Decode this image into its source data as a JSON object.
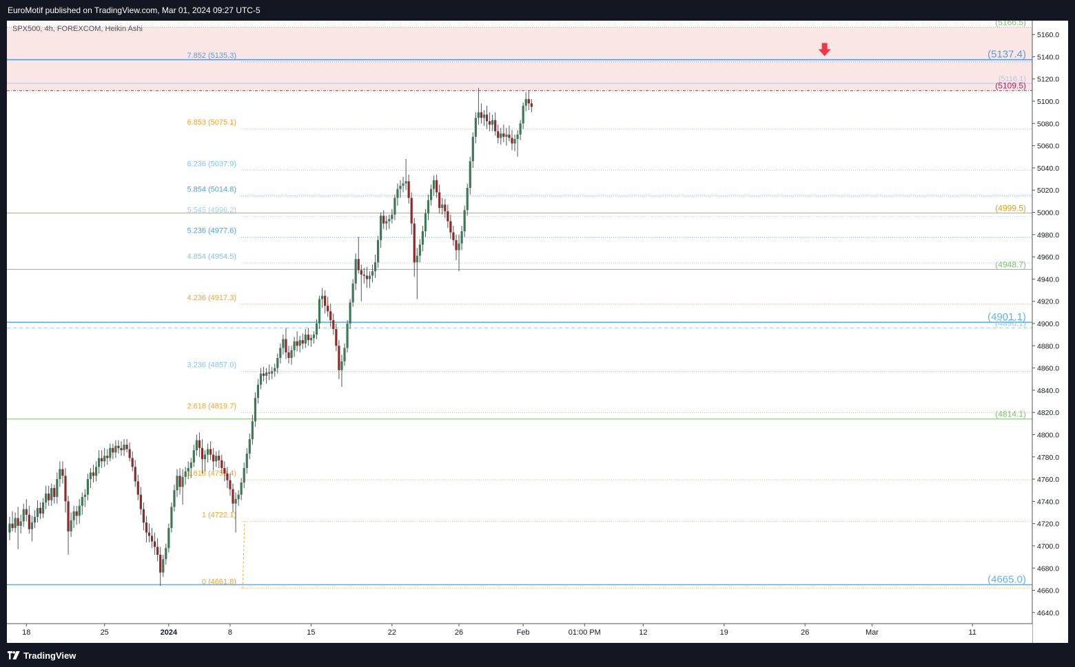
{
  "header": {
    "published": "EuroMotif published on TradingView.com, Mar 01, 2024 09:27 UTC-5"
  },
  "footer": {
    "brand": "TradingView"
  },
  "chart_data": {
    "type": "candlestick",
    "symbol_line": "SPX500, 4h, FOREXCOM, Heikin Ashi",
    "ylim": [
      4630,
      5170
    ],
    "y_ticks": [
      "5160.0",
      "5140.0",
      "5120.0",
      "5100.0",
      "5080.0",
      "5060.0",
      "5040.0",
      "5020.0",
      "5000.0",
      "4980.0",
      "4960.0",
      "4940.0",
      "4920.0",
      "4900.0",
      "4880.0",
      "4860.0",
      "4840.0",
      "4820.0",
      "4800.0",
      "4780.0",
      "4760.0",
      "4740.0",
      "4720.0",
      "4700.0",
      "4680.0",
      "4660.0",
      "4640.0"
    ],
    "x_ticks": [
      {
        "label": "18",
        "i": 6
      },
      {
        "label": "25",
        "i": 34
      },
      {
        "label": "2024",
        "i": 57
      },
      {
        "label": "8",
        "i": 79
      },
      {
        "label": "15",
        "i": 108
      },
      {
        "label": "22",
        "i": 137
      },
      {
        "label": "26",
        "i": 161
      },
      {
        "label": "Feb",
        "i": 184
      },
      {
        "label": "01:00 PM",
        "i": 206
      },
      {
        "label": "12",
        "i": 227
      },
      {
        "label": "19",
        "i": 256
      },
      {
        "label": "26",
        "i": 285
      },
      {
        "label": "Mar",
        "i": 309
      },
      {
        "label": "11",
        "i": 345
      }
    ],
    "fib_levels": [
      {
        "ratio": "0",
        "value": 4661.8,
        "label": "0 (4661.8)",
        "color": "#f2a228"
      },
      {
        "ratio": "1",
        "value": 4722.1,
        "label": "1 (4722.1)",
        "color": "#f2a228"
      },
      {
        "ratio": "1.618",
        "value": 4759.4,
        "label": "1.618 (4759.4)",
        "color": "#f2a228"
      },
      {
        "ratio": "2.618",
        "value": 4819.7,
        "label": "2.618 (4819.7)",
        "color": "#f2a228"
      },
      {
        "ratio": "3.236",
        "value": 4857.0,
        "label": "3.236 (4857.0)",
        "color": "#7ec3ea"
      },
      {
        "ratio": "4.236",
        "value": 4917.3,
        "label": "4.236 (4917.3)",
        "color": "#f2a228"
      },
      {
        "ratio": "4.854",
        "value": 4954.5,
        "label": "4.854 (4954.5)",
        "color": "#7ec3ea"
      },
      {
        "ratio": "5.236",
        "value": 4977.6,
        "label": "5.236 (4977.6)",
        "color": "#4aa3df"
      },
      {
        "ratio": "5.545",
        "value": 4996.2,
        "label": "5.545 (4996.2)",
        "color": "#9fd0ee"
      },
      {
        "ratio": "5.854",
        "value": 5014.8,
        "label": "5.854 (5014.8)",
        "color": "#4aa3df"
      },
      {
        "ratio": "6.236",
        "value": 5037.9,
        "label": "6.236 (5037.9)",
        "color": "#7ec3ea"
      },
      {
        "ratio": "6.853",
        "value": 5075.1,
        "label": "6.853 (5075.1)",
        "color": "#f2a228"
      },
      {
        "ratio": "7.852",
        "value": 5135.3,
        "label": "7.852 (5135.3)",
        "color": "#4aa3df"
      }
    ],
    "horizontal_lines": [
      {
        "value": 5166.5,
        "label": "(5166.5)",
        "color": "#7cbf6c",
        "style": "dotted",
        "label_size": "normal"
      },
      {
        "value": 5137.4,
        "label": "(5137.4)",
        "color": "#5b9bd5",
        "style": "solid",
        "label_size": "large"
      },
      {
        "value": 5116.1,
        "label": "(5116.1)",
        "color": "#a8cbe8",
        "style": "solid",
        "label_size": "small"
      },
      {
        "value": 5109.5,
        "label": "(5109.5)",
        "color": "#c2185b",
        "style": "dashdot",
        "label_size": "normal"
      },
      {
        "value": 4999.5,
        "label": "(4999.5)",
        "color": "#d6a418",
        "style": "solid",
        "label_size": "normal"
      },
      {
        "value": 4948.7,
        "label": "(4948.7)",
        "color": "#7cbf6c",
        "style": "solid",
        "label_size": "normal"
      },
      {
        "value": 4901.1,
        "label": "(4901.1)",
        "color": "#5eb2ef",
        "style": "solid",
        "label_size": "large"
      },
      {
        "value": 4896.1,
        "label": "(4896.1)",
        "color": "#92c8ee",
        "style": "dashed",
        "label_size": "normal"
      },
      {
        "value": 4814.1,
        "label": "(4814.1)",
        "color": "#7cbf6c",
        "style": "solid",
        "label_size": "normal"
      },
      {
        "value": 4665.0,
        "label": "(4665.0)",
        "color": "#5eb2ef",
        "style": "solid",
        "label_size": "large"
      }
    ],
    "zone": {
      "from": 5109.5,
      "to": 5166.5,
      "color": "#fbe6e6"
    },
    "arrow_marker": {
      "i": 292,
      "value": 5140,
      "color": "#f23645",
      "direction": "down"
    },
    "colors": {
      "up": "#3b7a55",
      "down": "#8b2a28",
      "wick": "#50535e",
      "axis_text": "#131722"
    },
    "candles": [
      [
        4712,
        4726,
        4705,
        4720
      ],
      [
        4720,
        4731,
        4713,
        4716
      ],
      [
        4716,
        4730,
        4712,
        4725
      ],
      [
        4725,
        4735,
        4697,
        4718
      ],
      [
        4718,
        4728,
        4711,
        4722
      ],
      [
        4722,
        4738,
        4717,
        4733
      ],
      [
        4733,
        4742,
        4722,
        4728
      ],
      [
        4728,
        4736,
        4711,
        4715
      ],
      [
        4715,
        4727,
        4704,
        4721
      ],
      [
        4721,
        4732,
        4716,
        4726
      ],
      [
        4726,
        4741,
        4721,
        4734
      ],
      [
        4734,
        4739,
        4724,
        4729
      ],
      [
        4729,
        4743,
        4725,
        4739
      ],
      [
        4739,
        4754,
        4733,
        4747
      ],
      [
        4747,
        4754,
        4736,
        4741
      ],
      [
        4741,
        4756,
        4736,
        4752
      ],
      [
        4752,
        4755,
        4738,
        4744
      ],
      [
        4744,
        4766,
        4738,
        4760
      ],
      [
        4760,
        4776,
        4753,
        4769
      ],
      [
        4769,
        4776,
        4756,
        4763
      ],
      [
        4763,
        4770,
        4730,
        4740
      ],
      [
        4740,
        4745,
        4692,
        4713
      ],
      [
        4713,
        4730,
        4708,
        4723
      ],
      [
        4723,
        4736,
        4716,
        4731
      ],
      [
        4731,
        4736,
        4719,
        4727
      ],
      [
        4727,
        4742,
        4720,
        4736
      ],
      [
        4736,
        4748,
        4728,
        4744
      ],
      [
        4744,
        4751,
        4735,
        4746
      ],
      [
        4746,
        4765,
        4741,
        4760
      ],
      [
        4760,
        4770,
        4752,
        4766
      ],
      [
        4766,
        4773,
        4757,
        4763
      ],
      [
        4763,
        4776,
        4758,
        4771
      ],
      [
        4771,
        4786,
        4765,
        4779
      ],
      [
        4779,
        4786,
        4770,
        4776
      ],
      [
        4776,
        4788,
        4771,
        4781
      ],
      [
        4781,
        4787,
        4773,
        4779
      ],
      [
        4779,
        4792,
        4776,
        4788
      ],
      [
        4788,
        4792,
        4778,
        4784
      ],
      [
        4784,
        4795,
        4779,
        4790
      ],
      [
        4790,
        4795,
        4783,
        4788
      ],
      [
        4788,
        4794,
        4781,
        4786
      ],
      [
        4786,
        4796,
        4781,
        4791
      ],
      [
        4791,
        4796,
        4784,
        4787
      ],
      [
        4787,
        4793,
        4776,
        4779
      ],
      [
        4779,
        4785,
        4767,
        4771
      ],
      [
        4771,
        4777,
        4753,
        4758
      ],
      [
        4758,
        4764,
        4741,
        4746
      ],
      [
        4746,
        4753,
        4728,
        4733
      ],
      [
        4733,
        4739,
        4714,
        4721
      ],
      [
        4721,
        4727,
        4703,
        4712
      ],
      [
        4712,
        4720,
        4703,
        4709
      ],
      [
        4709,
        4716,
        4698,
        4704
      ],
      [
        4704,
        4712,
        4692,
        4699
      ],
      [
        4699,
        4707,
        4686,
        4692
      ],
      [
        4692,
        4699,
        4664,
        4676
      ],
      [
        4676,
        4692,
        4672,
        4688
      ],
      [
        4688,
        4702,
        4683,
        4698
      ],
      [
        4698,
        4720,
        4694,
        4716
      ],
      [
        4716,
        4739,
        4712,
        4735
      ],
      [
        4735,
        4755,
        4731,
        4750
      ],
      [
        4750,
        4769,
        4744,
        4763
      ],
      [
        4763,
        4770,
        4746,
        4753
      ],
      [
        4753,
        4769,
        4737,
        4762
      ],
      [
        4762,
        4771,
        4755,
        4767
      ],
      [
        4767,
        4776,
        4760,
        4770
      ],
      [
        4770,
        4779,
        4761,
        4775
      ],
      [
        4775,
        4791,
        4771,
        4786
      ],
      [
        4786,
        4800,
        4781,
        4795
      ],
      [
        4795,
        4802,
        4780,
        4788
      ],
      [
        4788,
        4796,
        4765,
        4778
      ],
      [
        4778,
        4786,
        4767,
        4782
      ],
      [
        4782,
        4792,
        4775,
        4787
      ],
      [
        4787,
        4794,
        4777,
        4782
      ],
      [
        4782,
        4788,
        4768,
        4776
      ],
      [
        4776,
        4785,
        4771,
        4781
      ],
      [
        4781,
        4786,
        4770,
        4777
      ],
      [
        4777,
        4782,
        4765,
        4770
      ],
      [
        4770,
        4776,
        4758,
        4765
      ],
      [
        4765,
        4771,
        4752,
        4759
      ],
      [
        4759,
        4765,
        4745,
        4751
      ],
      [
        4751,
        4756,
        4730,
        4738
      ],
      [
        4738,
        4748,
        4712,
        4742
      ],
      [
        4742,
        4750,
        4736,
        4746
      ],
      [
        4746,
        4761,
        4741,
        4757
      ],
      [
        4757,
        4775,
        4752,
        4770
      ],
      [
        4770,
        4788,
        4765,
        4783
      ],
      [
        4783,
        4801,
        4778,
        4796
      ],
      [
        4796,
        4818,
        4791,
        4812
      ],
      [
        4812,
        4838,
        4807,
        4833
      ],
      [
        4833,
        4850,
        4828,
        4845
      ],
      [
        4845,
        4860,
        4841,
        4855
      ],
      [
        4855,
        4861,
        4848,
        4853
      ],
      [
        4853,
        4860,
        4846,
        4856
      ],
      [
        4856,
        4863,
        4849,
        4855
      ],
      [
        4855,
        4861,
        4850,
        4857
      ],
      [
        4857,
        4864,
        4852,
        4860
      ],
      [
        4860,
        4873,
        4855,
        4869
      ],
      [
        4869,
        4882,
        4864,
        4878
      ],
      [
        4878,
        4890,
        4872,
        4886
      ],
      [
        4886,
        4896,
        4868,
        4874
      ],
      [
        4874,
        4880,
        4864,
        4869
      ],
      [
        4869,
        4880,
        4863,
        4876
      ],
      [
        4876,
        4888,
        4870,
        4884
      ],
      [
        4884,
        4893,
        4875,
        4880
      ],
      [
        4880,
        4889,
        4874,
        4885
      ],
      [
        4885,
        4891,
        4877,
        4882
      ],
      [
        4882,
        4895,
        4878,
        4890
      ],
      [
        4890,
        4896,
        4880,
        4885
      ],
      [
        4885,
        4890,
        4879,
        4887
      ],
      [
        4887,
        4893,
        4882,
        4890
      ],
      [
        4890,
        4904,
        4886,
        4900
      ],
      [
        4900,
        4925,
        4895,
        4922
      ],
      [
        4922,
        4932,
        4914,
        4925
      ],
      [
        4925,
        4930,
        4909,
        4916
      ],
      [
        4916,
        4924,
        4906,
        4911
      ],
      [
        4911,
        4918,
        4897,
        4903
      ],
      [
        4903,
        4909,
        4890,
        4895
      ],
      [
        4895,
        4900,
        4875,
        4880
      ],
      [
        4880,
        4885,
        4850,
        4858
      ],
      [
        4858,
        4872,
        4843,
        4866
      ],
      [
        4866,
        4882,
        4862,
        4878
      ],
      [
        4878,
        4903,
        4874,
        4900
      ],
      [
        4900,
        4922,
        4895,
        4919
      ],
      [
        4919,
        4940,
        4915,
        4936
      ],
      [
        4936,
        4963,
        4930,
        4958
      ],
      [
        4958,
        4978,
        4945,
        4948
      ],
      [
        4948,
        4953,
        4920,
        4944
      ],
      [
        4944,
        4950,
        4936,
        4943
      ],
      [
        4943,
        4951,
        4932,
        4940
      ],
      [
        4940,
        4947,
        4932,
        4943
      ],
      [
        4943,
        4953,
        4937,
        4947
      ],
      [
        4947,
        4962,
        4941,
        4955
      ],
      [
        4955,
        4979,
        4950,
        4975
      ],
      [
        4975,
        5000,
        4968,
        4997
      ],
      [
        4997,
        5002,
        4985,
        4990
      ],
      [
        4990,
        4997,
        4984,
        4992
      ],
      [
        4992,
        4998,
        4985,
        4994
      ],
      [
        4994,
        5003,
        4990,
        4998
      ],
      [
        4998,
        5016,
        4993,
        5013
      ],
      [
        5013,
        5026,
        5006,
        5021
      ],
      [
        5021,
        5029,
        5013,
        5024
      ],
      [
        5024,
        5032,
        5018,
        5026
      ],
      [
        5026,
        5048,
        5020,
        5028
      ],
      [
        5028,
        5034,
        5008,
        5013
      ],
      [
        5013,
        5018,
        4980,
        4990
      ],
      [
        4990,
        4995,
        4942,
        4955
      ],
      [
        4955,
        4968,
        4922,
        4961
      ],
      [
        4961,
        4976,
        4955,
        4971
      ],
      [
        4971,
        4988,
        4965,
        4983
      ],
      [
        4983,
        5003,
        4978,
        4999
      ],
      [
        4999,
        5016,
        4993,
        5011
      ],
      [
        5011,
        5025,
        5006,
        5021
      ],
      [
        5021,
        5033,
        5015,
        5029
      ],
      [
        5029,
        5034,
        5013,
        5018
      ],
      [
        5018,
        5025,
        4999,
        5004
      ],
      [
        5004,
        5013,
        4998,
        5007
      ],
      [
        5007,
        5012,
        4995,
        5001
      ],
      [
        5001,
        5007,
        4986,
        4992
      ],
      [
        4992,
        4998,
        4976,
        4982
      ],
      [
        4982,
        4988,
        4970,
        4975
      ],
      [
        4975,
        4980,
        4957,
        4966
      ],
      [
        4966,
        4980,
        4947,
        4972
      ],
      [
        4972,
        4988,
        4966,
        4983
      ],
      [
        4983,
        5006,
        4978,
        5002
      ],
      [
        5002,
        5026,
        4997,
        5022
      ],
      [
        5022,
        5050,
        5016,
        5046
      ],
      [
        5046,
        5072,
        5040,
        5068
      ],
      [
        5068,
        5090,
        5062,
        5085
      ],
      [
        5085,
        5112,
        5079,
        5090
      ],
      [
        5090,
        5098,
        5080,
        5085
      ],
      [
        5085,
        5092,
        5078,
        5088
      ],
      [
        5088,
        5096,
        5075,
        5082
      ],
      [
        5082,
        5090,
        5073,
        5079
      ],
      [
        5079,
        5088,
        5073,
        5083
      ],
      [
        5083,
        5090,
        5069,
        5073
      ],
      [
        5073,
        5079,
        5062,
        5067
      ],
      [
        5067,
        5076,
        5061,
        5071
      ],
      [
        5071,
        5079,
        5063,
        5068
      ],
      [
        5068,
        5076,
        5060,
        5070
      ],
      [
        5070,
        5078,
        5064,
        5067
      ],
      [
        5067,
        5074,
        5056,
        5062
      ],
      [
        5062,
        5070,
        5055,
        5066
      ],
      [
        5066,
        5074,
        5050,
        5070
      ],
      [
        5070,
        5083,
        5065,
        5080
      ],
      [
        5080,
        5099,
        5075,
        5096
      ],
      [
        5096,
        5108,
        5091,
        5102
      ],
      [
        5102,
        5109,
        5092,
        5098
      ],
      [
        5098,
        5102,
        5090,
        5095
      ]
    ]
  }
}
